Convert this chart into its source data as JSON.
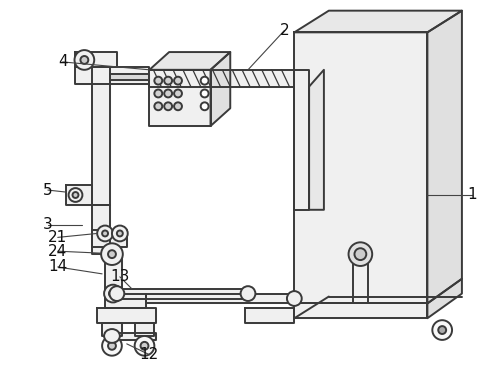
{
  "bg_color": "#ffffff",
  "line_color": "#3a3a3a",
  "line_width": 1.4,
  "thin_line": 0.9,
  "figsize": [
    4.96,
    3.9
  ],
  "dpi": 100
}
